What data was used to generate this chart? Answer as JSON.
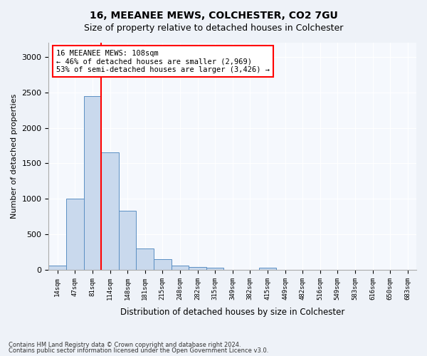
{
  "title1": "16, MEEANEE MEWS, COLCHESTER, CO2 7GU",
  "title2": "Size of property relative to detached houses in Colchester",
  "xlabel": "Distribution of detached houses by size in Colchester",
  "ylabel": "Number of detached properties",
  "bar_values": [
    55,
    1000,
    2450,
    1650,
    830,
    300,
    150,
    55,
    40,
    30,
    0,
    0,
    30,
    0,
    0,
    0,
    0,
    0,
    0,
    0,
    0
  ],
  "bin_labels": [
    "14sqm",
    "47sqm",
    "81sqm",
    "114sqm",
    "148sqm",
    "181sqm",
    "215sqm",
    "248sqm",
    "282sqm",
    "315sqm",
    "349sqm",
    "382sqm",
    "415sqm",
    "449sqm",
    "482sqm",
    "516sqm",
    "549sqm",
    "583sqm",
    "616sqm",
    "650sqm",
    "683sqm"
  ],
  "bar_color": "#c9d9ed",
  "bar_edge_color": "#5a8fc3",
  "vline_x": 3.0,
  "vline_color": "red",
  "ylim": [
    0,
    3200
  ],
  "yticks": [
    0,
    500,
    1000,
    1500,
    2000,
    2500,
    3000
  ],
  "annotation_text": "16 MEEANEE MEWS: 108sqm\n← 46% of detached houses are smaller (2,969)\n53% of semi-detached houses are larger (3,426) →",
  "annotation_box_color": "white",
  "annotation_box_edge_color": "red",
  "footer1": "Contains HM Land Registry data © Crown copyright and database right 2024.",
  "footer2": "Contains public sector information licensed under the Open Government Licence v3.0.",
  "bg_color": "#eef2f8",
  "plot_bg_color": "#f5f8fd"
}
